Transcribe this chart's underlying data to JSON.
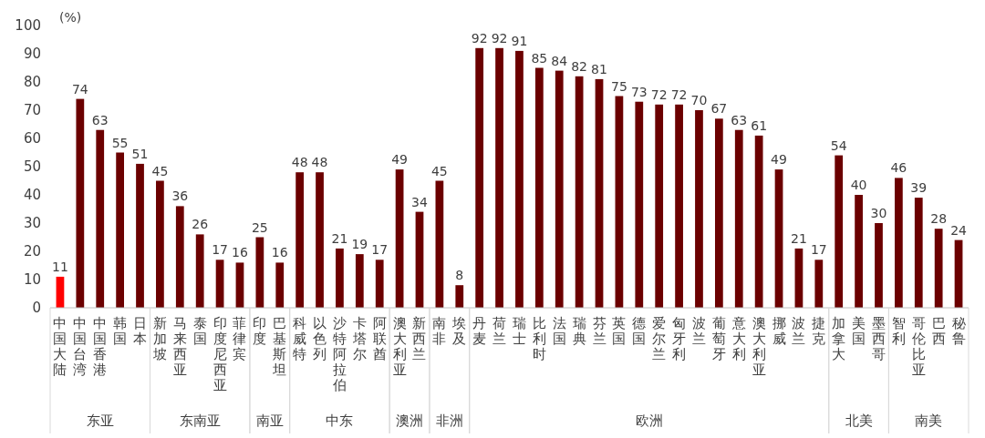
{
  "chart_data": {
    "type": "bar",
    "ylabel": "(%)",
    "categories": [
      "中国大陆",
      "中国台湾",
      "中国香港",
      "韩国",
      "日本",
      "新加坡",
      "马来西亚",
      "泰国",
      "印度尼西亚",
      "菲律宾",
      "印度",
      "巴基斯坦",
      "科威特",
      "以色列",
      "沙特阿拉伯",
      "卡塔尔",
      "阿联酋",
      "澳大利亚",
      "新西兰",
      "南非",
      "埃及",
      "丹麦",
      "荷兰",
      "瑞士",
      "比利时",
      "法国",
      "瑞典",
      "芬兰",
      "英国",
      "德国",
      "爱尔兰",
      "匈牙利",
      "波兰",
      "葡萄牙",
      "意大利",
      "澳大利亚",
      "挪威",
      "波兰",
      "捷克",
      "加拿大",
      "美国",
      "墨西哥",
      "智利",
      "哥伦比亚",
      "巴西",
      "秘鲁"
    ],
    "values": [
      11,
      74,
      63,
      55,
      51,
      45,
      36,
      26,
      17,
      16,
      25,
      16,
      48,
      48,
      21,
      19,
      17,
      49,
      34,
      45,
      8,
      92,
      92,
      91,
      85,
      84,
      82,
      81,
      75,
      73,
      72,
      72,
      70,
      67,
      63,
      61,
      49,
      21,
      17,
      54,
      40,
      30,
      46,
      39,
      28,
      24
    ],
    "colors": [
      "#ff0000",
      "#6b0000",
      "#6b0000",
      "#6b0000",
      "#6b0000",
      "#6b0000",
      "#6b0000",
      "#6b0000",
      "#6b0000",
      "#6b0000",
      "#6b0000",
      "#6b0000",
      "#6b0000",
      "#6b0000",
      "#6b0000",
      "#6b0000",
      "#6b0000",
      "#6b0000",
      "#6b0000",
      "#6b0000",
      "#6b0000",
      "#6b0000",
      "#6b0000",
      "#6b0000",
      "#6b0000",
      "#6b0000",
      "#6b0000",
      "#6b0000",
      "#6b0000",
      "#6b0000",
      "#6b0000",
      "#6b0000",
      "#6b0000",
      "#6b0000",
      "#6b0000",
      "#6b0000",
      "#6b0000",
      "#6b0000",
      "#6b0000",
      "#6b0000",
      "#6b0000",
      "#6b0000",
      "#6b0000",
      "#6b0000",
      "#6b0000",
      "#6b0000"
    ],
    "ylim": [
      0,
      100
    ],
    "yticks": [
      0,
      10,
      20,
      30,
      40,
      50,
      60,
      70,
      80,
      90,
      100
    ],
    "grid": false,
    "legend": false,
    "data_labels": true,
    "annotations": [
      "东亚",
      "东南亚",
      "南亚",
      "中东",
      "澳洲",
      "非洲",
      "欧洲",
      "北美",
      "南美"
    ]
  }
}
